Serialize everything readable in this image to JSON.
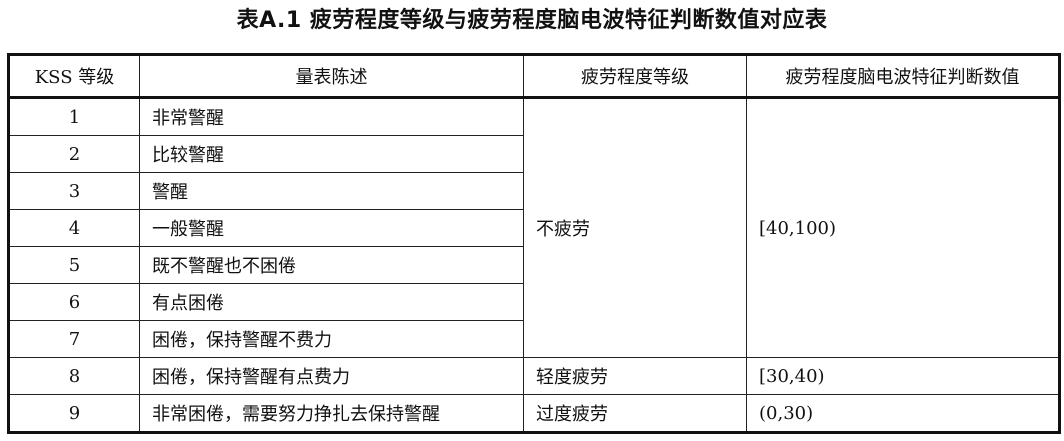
{
  "title": "表A.1  疲劳程度等级与疲劳程度脑电波特征判断数值对应表",
  "headers": [
    "KSS 等级",
    "量表陈述",
    "疲劳程度等级",
    "疲劳程度脑电波特征判断数值"
  ],
  "rows": [
    {
      "level": "1",
      "statement": "非常警醒"
    },
    {
      "level": "2",
      "statement": "比较警醒"
    },
    {
      "level": "3",
      "statement": "警醒"
    },
    {
      "level": "4",
      "statement": "一般警醒"
    },
    {
      "level": "5",
      "statement": "既不警醒也不困倦"
    },
    {
      "level": "6",
      "statement": "有点困倦"
    },
    {
      "level": "7",
      "statement": "困倦，保持警醒不费力"
    },
    {
      "level": "8",
      "statement": "困倦，保持警醒有点费力"
    },
    {
      "level": "9",
      "statement": "非常困倦，需要努力挣扎去保持警醒"
    }
  ],
  "groups": [
    {
      "fatigue": "不疲劳",
      "range": "[40,100)"
    },
    {
      "fatigue": "轻度疲劳",
      "range": "[30,40)"
    },
    {
      "fatigue": "过度疲劳",
      "range": "(0,30)"
    }
  ]
}
